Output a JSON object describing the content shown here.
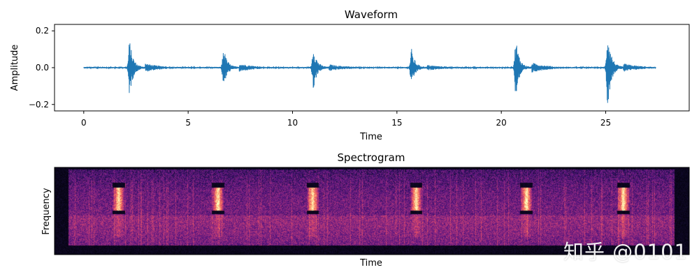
{
  "chart_data": [
    {
      "type": "line",
      "title": "Waveform",
      "xlabel": "Time",
      "ylabel": "Amplitude",
      "xlim": [
        -1.4,
        29
      ],
      "ylim": [
        -0.235,
        0.235
      ],
      "xticks": [
        0,
        5,
        10,
        15,
        20,
        25
      ],
      "yticks": [
        -0.2,
        0.0,
        0.2
      ],
      "ytick_labels": [
        "−0.2",
        "0.0",
        "0.2"
      ],
      "series_color": "#1f77b4",
      "grid": false,
      "duration": 27.4,
      "bursts": [
        {
          "t": 2.2,
          "amp": 0.15,
          "tail": 0.02
        },
        {
          "t": 6.7,
          "amp": 0.11,
          "tail": 0.02
        },
        {
          "t": 11.0,
          "amp": 0.12,
          "tail": 0.015
        },
        {
          "t": 15.7,
          "amp": 0.1,
          "tail": 0.012
        },
        {
          "t": 20.7,
          "amp": 0.16,
          "tail": 0.025
        },
        {
          "t": 25.1,
          "amp": 0.21,
          "tail": 0.02
        }
      ]
    },
    {
      "type": "heatmap",
      "title": "Spectrogram",
      "xlabel": "Time",
      "ylabel": "Frequency",
      "colormap": "magma",
      "axis_ticks": false,
      "event_times": [
        2.2,
        6.7,
        11.0,
        15.7,
        20.7,
        25.1
      ]
    }
  ],
  "watermark": "知乎 @0101"
}
